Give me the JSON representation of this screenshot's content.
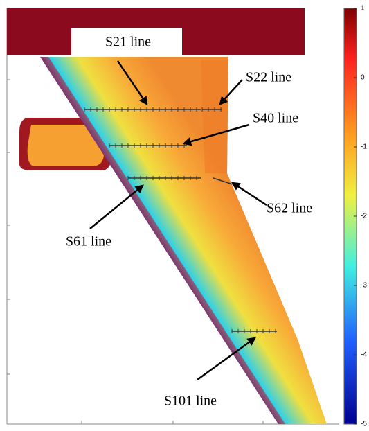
{
  "labels": [
    "S21 line",
    "S22 line",
    "S40 line",
    "S61 line",
    "S62 line",
    "S101 line"
  ],
  "colorbar": {
    "lim": [
      -5,
      1
    ],
    "ticks": [
      1,
      0,
      -1,
      -2,
      -3,
      -4,
      -5
    ]
  }
}
